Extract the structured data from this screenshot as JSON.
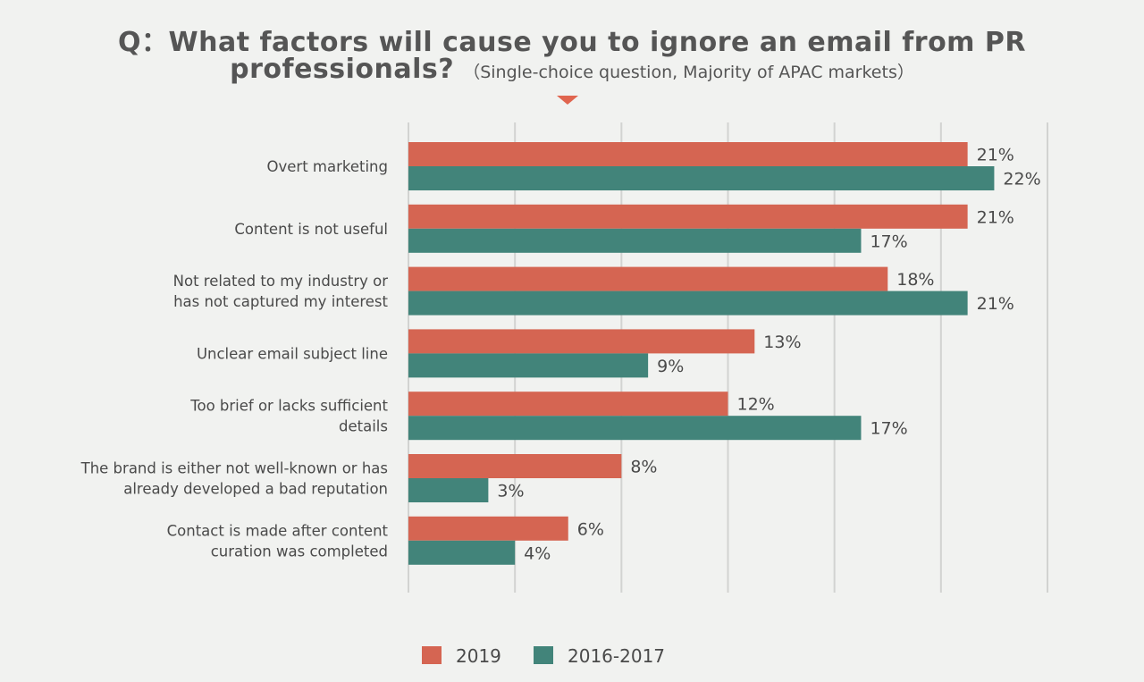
{
  "title": {
    "line1": "Q：What factors will cause you to ignore an email from PR",
    "line2": "professionals?",
    "subtitle": "（Single-choice question, Majority of APAC markets）"
  },
  "chart_data": {
    "type": "bar",
    "orientation": "horizontal",
    "categories": [
      "Overt marketing",
      "Content is not useful",
      "Not related to my industry or\nhas not captured my interest",
      "Unclear email subject line",
      "Too brief or lacks sufficient\ndetails",
      "The brand is either not well-known or has\nalready developed a bad reputation",
      "Contact is made after content\ncuration was completed"
    ],
    "series": [
      {
        "name": "2019",
        "color": "#d56552",
        "values": [
          21,
          21,
          18,
          13,
          12,
          8,
          6
        ]
      },
      {
        "name": "2016-2017",
        "color": "#42847a",
        "values": [
          22,
          17,
          21,
          9,
          17,
          3,
          4
        ]
      }
    ],
    "value_suffix": "%",
    "xlim": [
      0,
      24
    ],
    "grid": true,
    "legend": "bottom"
  }
}
